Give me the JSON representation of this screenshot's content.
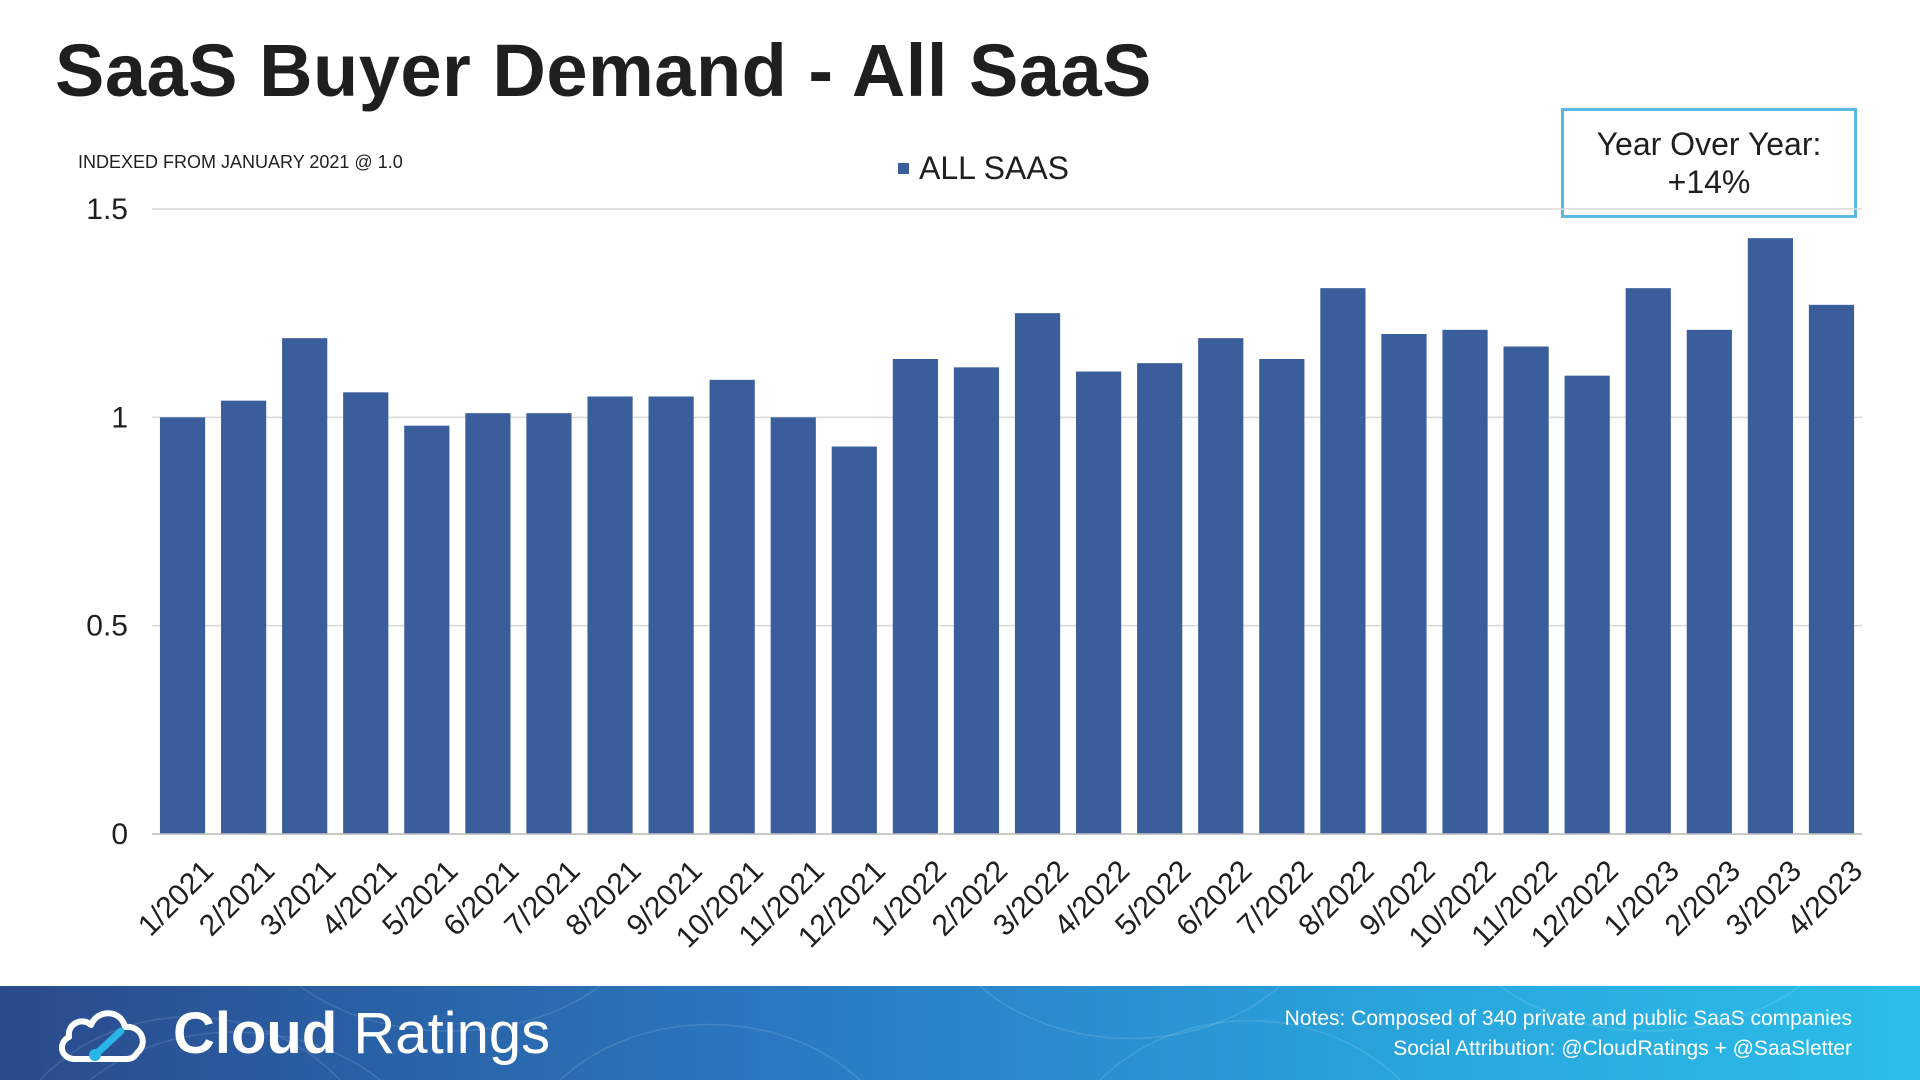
{
  "header": {
    "title": "SaaS Buyer Demand - All SaaS",
    "index_note": "INDEXED FROM JANUARY 2021 @ 1.0"
  },
  "callout": {
    "line1": "Year Over Year:",
    "line2": "+14%"
  },
  "footer": {
    "brand_bold": "Cloud",
    "brand_light": "Ratings",
    "logo_icon": "cloud-gauge-icon",
    "notes_line1": "Notes: Composed of 340 private and public SaaS companies",
    "notes_line2": "Social Attribution: @CloudRatings + @SaaSletter"
  },
  "colors": {
    "bar": "#3a5d9c",
    "grid": "#d9d9d9",
    "callout_border": "#5bb8e0"
  },
  "chart_data": {
    "type": "bar",
    "title": "SaaS Buyer Demand - All SaaS",
    "categories": [
      "1/2021",
      "2/2021",
      "3/2021",
      "4/2021",
      "5/2021",
      "6/2021",
      "7/2021",
      "8/2021",
      "9/2021",
      "10/2021",
      "11/2021",
      "12/2021",
      "1/2022",
      "2/2022",
      "3/2022",
      "4/2022",
      "5/2022",
      "6/2022",
      "7/2022",
      "8/2022",
      "9/2022",
      "10/2022",
      "11/2022",
      "12/2022",
      "1/2023",
      "2/2023",
      "3/2023",
      "4/2023"
    ],
    "series": [
      {
        "name": "ALL SAAS",
        "values": [
          1.0,
          1.04,
          1.19,
          1.06,
          0.98,
          1.01,
          1.01,
          1.05,
          1.05,
          1.09,
          1.0,
          0.93,
          1.14,
          1.12,
          1.25,
          1.11,
          1.13,
          1.19,
          1.14,
          1.31,
          1.2,
          1.21,
          1.17,
          1.1,
          1.31,
          1.21,
          1.43,
          1.27
        ]
      }
    ],
    "yticks": [
      "0",
      "0.5",
      "1",
      "1.5"
    ],
    "ylim": [
      0,
      1.5
    ],
    "grid": true,
    "legend": "top-center"
  }
}
